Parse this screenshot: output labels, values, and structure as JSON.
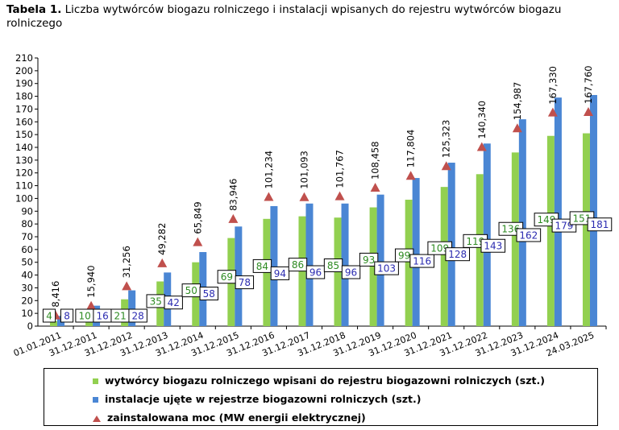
{
  "title": {
    "number": "Tabela 1.",
    "text": "Liczba wytwórców biogazu rolniczego i instalacji wpisanych do rejestru wytwórców biogazu rolniczego"
  },
  "colors": {
    "producers": "#92D050",
    "installations": "#4A86D4",
    "power": "#C0504D",
    "producers_label": "#2E8B22",
    "installations_label": "#2B2BB0"
  },
  "chart_data": {
    "type": "bar",
    "categories": [
      "01.01.2011",
      "31.12.2011",
      "31.12.2012",
      "31.12.2013",
      "31.12.2014",
      "31.12.2015",
      "31.12.2016",
      "31.12.2017",
      "31.12.2018",
      "31.12.2019",
      "31.12.2020",
      "31.12.2021",
      "31.12.2022",
      "31.12.2023",
      "31.12.2024",
      "24.03.2025"
    ],
    "series": [
      {
        "name": "wytwórcy biogazu rolniczego wpisani do rejestru biogazowni rolniczych (szt.)",
        "type": "bar",
        "values": [
          4,
          10,
          21,
          35,
          50,
          69,
          84,
          86,
          85,
          93,
          99,
          109,
          119,
          136,
          149,
          151
        ]
      },
      {
        "name": "instalacje ujęte w rejestrze biogazowni rolniczych (szt.)",
        "type": "bar",
        "values": [
          8,
          16,
          28,
          42,
          58,
          78,
          94,
          96,
          96,
          103,
          116,
          128,
          143,
          162,
          179,
          181
        ]
      },
      {
        "name": "zainstalowana moc (MW energii elektrycznej)",
        "type": "marker",
        "values": [
          8.416,
          15.94,
          31.256,
          49.282,
          65.849,
          83.946,
          101.234,
          101.093,
          101.767,
          108.458,
          117.804,
          125.323,
          140.34,
          154.987,
          167.33,
          167.76
        ],
        "labels": [
          "8,416",
          "15,940",
          "31,256",
          "49,282",
          "65,849",
          "83,946",
          "101,234",
          "101,093",
          "101,767",
          "108,458",
          "117,804",
          "125,323",
          "140,340",
          "154,987",
          "167,330",
          "167,760"
        ]
      }
    ],
    "ylim": [
      0,
      210
    ],
    "ytick_step": 10,
    "grid": false,
    "legend_position": "bottom"
  }
}
